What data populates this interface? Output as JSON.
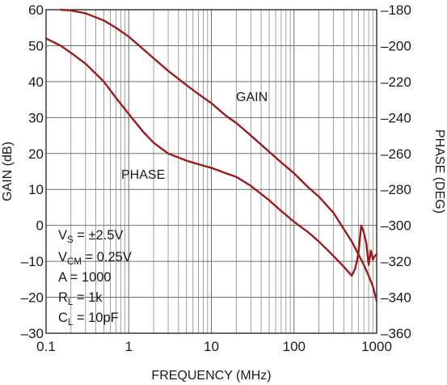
{
  "chart_data": {
    "type": "line",
    "xlabel": "FREQUENCY (MHz)",
    "ylabel_left": "GAIN (dB)",
    "ylabel_right": "PHASE (DEG)",
    "x_scale": "log",
    "xlim": [
      0.1,
      1000
    ],
    "ylim_left": [
      -30,
      60
    ],
    "ylim_right": [
      -360,
      -180
    ],
    "x_ticks": [
      "0.1",
      "1",
      "10",
      "100",
      "1000"
    ],
    "y_ticks_left": [
      "60",
      "50",
      "40",
      "30",
      "20",
      "10",
      "0",
      "–10",
      "–20",
      "–30"
    ],
    "y_ticks_right": [
      "–180",
      "–200",
      "–220",
      "–240",
      "–260",
      "–280",
      "–300",
      "–320",
      "–340",
      "–360"
    ],
    "grid": true,
    "line_color": "#9b1b1f",
    "series": [
      {
        "name": "GAIN",
        "axis": "left",
        "x": [
          0.15,
          0.2,
          0.3,
          0.5,
          0.7,
          1,
          1.5,
          2,
          3,
          5,
          7,
          10,
          15,
          20,
          30,
          50,
          70,
          100,
          150,
          200,
          300,
          400,
          500,
          600,
          700,
          800,
          900,
          1000
        ],
        "y": [
          60,
          59.8,
          59,
          57,
          55,
          52.5,
          49,
          46.5,
          43,
          39,
          36.5,
          34,
          30.5,
          28.5,
          25,
          20.5,
          17.5,
          14.5,
          10.5,
          8,
          3.5,
          -1,
          -4.5,
          -8,
          -11,
          -14,
          -17,
          -21
        ]
      },
      {
        "name": "PHASE",
        "axis": "right",
        "x": [
          0.1,
          0.15,
          0.2,
          0.3,
          0.5,
          0.7,
          1,
          1.5,
          2,
          3,
          5,
          7,
          10,
          15,
          20,
          30,
          50,
          70,
          100,
          150,
          200,
          300,
          400,
          500,
          550,
          600,
          650,
          700,
          750,
          800,
          850,
          900,
          950,
          1000
        ],
        "y": [
          -196,
          -200,
          -204,
          -210,
          -220,
          -229,
          -238,
          -248,
          -254,
          -260,
          -264,
          -266,
          -268,
          -271,
          -273,
          -278,
          -286,
          -292,
          -298,
          -304,
          -309,
          -317,
          -323,
          -328,
          -324,
          -316,
          -300,
          -304,
          -310,
          -322,
          -314,
          -319,
          -317,
          -316
        ]
      }
    ],
    "annotations": [
      "V<sub>S</sub> = ±2.5V",
      "V<sub>CM</sub> = 0.25V",
      "A = 1000",
      "R<sub>L</sub> = 1k",
      "C<sub>L</sub> = 10pF"
    ]
  },
  "conditions": {
    "vs_main": "V",
    "vs_sub": "S",
    "vs_value": " = ±2.5V",
    "vcm_main": "V",
    "vcm_sub": "CM",
    "vcm_value": " = 0.25V",
    "a_text": "A = 1000",
    "rl_main": "R",
    "rl_sub": "L",
    "rl_value": " = 1k",
    "cl_main": "C",
    "cl_sub": "L",
    "cl_value": " = 10pF"
  }
}
